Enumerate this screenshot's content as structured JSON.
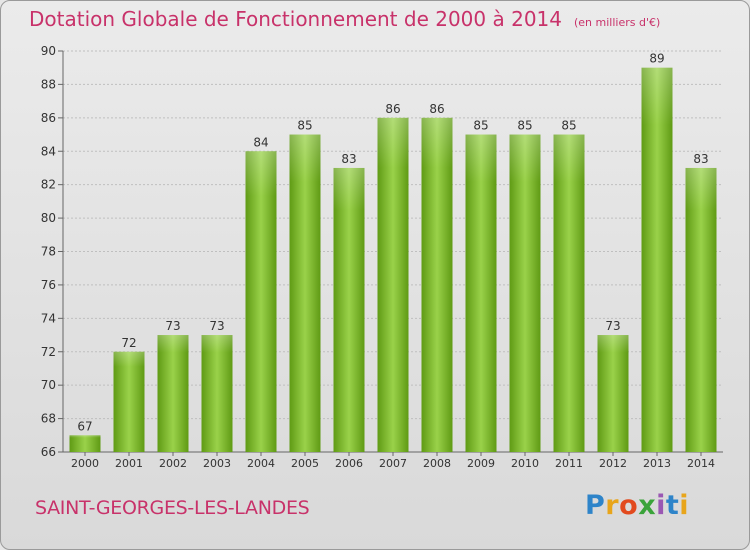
{
  "header": {
    "title": "Dotation Globale de Fonctionnement de 2000 à 2014",
    "unit": "(en milliers d'€)"
  },
  "footer": {
    "commune": "SAINT-GEORGES-LES-LANDES",
    "logo_text": "Proxiti"
  },
  "colors": {
    "title": "#c8326a",
    "bar_light": "#9ad24a",
    "bar_dark": "#5f9a14",
    "grid": "#bfbfbf"
  },
  "chart_data": {
    "type": "bar",
    "title": "Dotation Globale de Fonctionnement de 2000 à 2014",
    "categories": [
      "2000",
      "2001",
      "2002",
      "2003",
      "2004",
      "2005",
      "2006",
      "2007",
      "2008",
      "2009",
      "2010",
      "2011",
      "2012",
      "2013",
      "2014"
    ],
    "values": [
      67,
      72,
      73,
      73,
      84,
      85,
      83,
      86,
      86,
      85,
      85,
      85,
      73,
      89,
      83
    ],
    "xlabel": "",
    "ylabel": "",
    "ylim": [
      66,
      90
    ],
    "yticks": [
      66,
      68,
      70,
      72,
      74,
      76,
      78,
      80,
      82,
      84,
      86,
      88,
      90
    ],
    "grid": true,
    "data_labels": true
  }
}
